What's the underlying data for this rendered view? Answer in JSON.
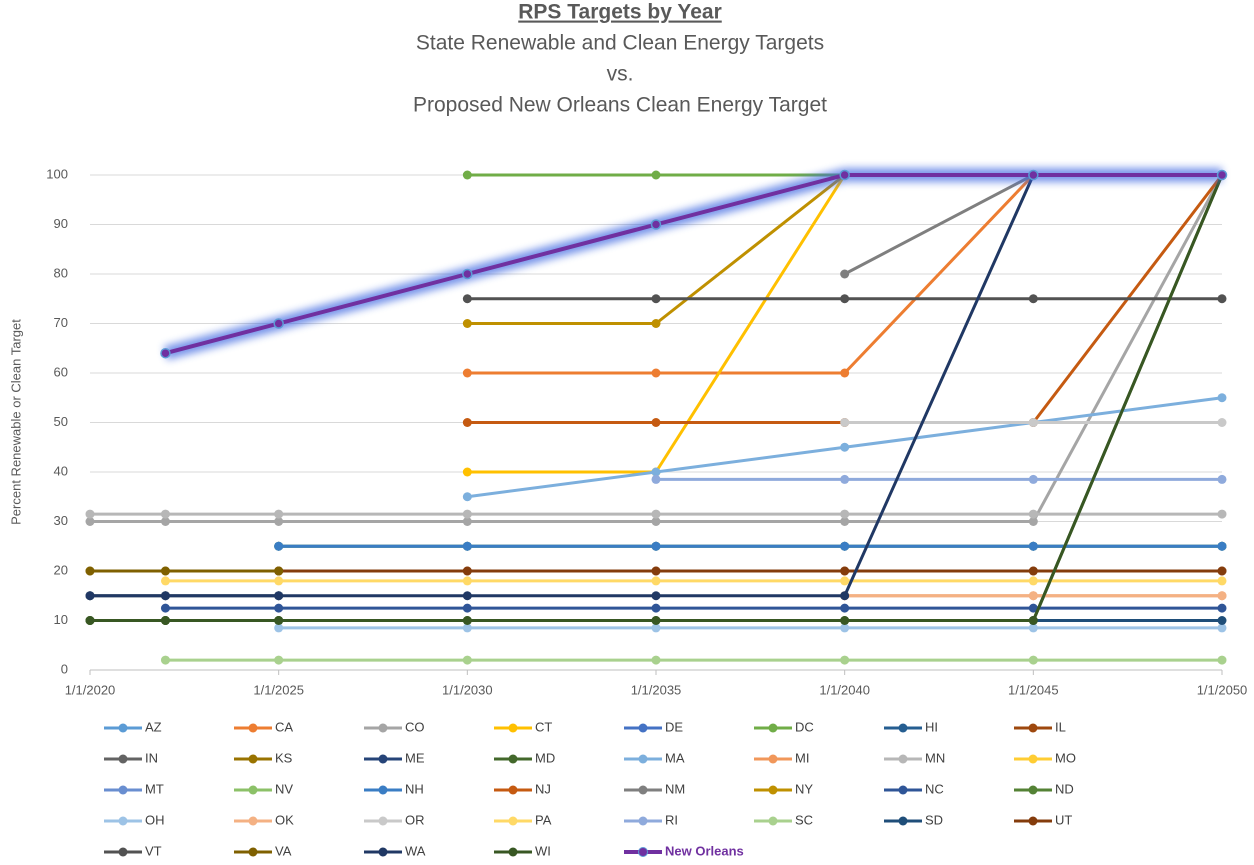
{
  "chart_data": {
    "type": "line",
    "title": "RPS Targets by Year",
    "subtitle": [
      "State Renewable and Clean Energy Targets",
      "vs.",
      "Proposed New Orleans Clean Energy Target"
    ],
    "y_label": "Percent Renewable or Clean  Target",
    "x": [
      2020,
      2022,
      2025,
      2030,
      2035,
      2040,
      2045,
      2050
    ],
    "xlim": [
      2020,
      2050
    ],
    "xticks": [
      {
        "value": 2020,
        "label": "1/1/2020"
      },
      {
        "value": 2025,
        "label": "1/1/2025"
      },
      {
        "value": 2030,
        "label": "1/1/2030"
      },
      {
        "value": 2035,
        "label": "1/1/2035"
      },
      {
        "value": 2040,
        "label": "1/1/2040"
      },
      {
        "value": 2045,
        "label": "1/1/2045"
      },
      {
        "value": 2050,
        "label": "1/1/2050"
      }
    ],
    "ylim": [
      0,
      100
    ],
    "yticks": [
      0,
      10,
      20,
      30,
      40,
      50,
      60,
      70,
      80,
      90,
      100
    ],
    "grid": true,
    "legend": "bottom",
    "series": [
      {
        "name": "AZ",
        "color": "#5b9bd5",
        "values": [
          15,
          15,
          15,
          null,
          null,
          null,
          null,
          null
        ]
      },
      {
        "name": "CA",
        "color": "#ed7d31",
        "values": [
          null,
          null,
          null,
          60,
          60,
          60,
          100,
          100
        ]
      },
      {
        "name": "CO",
        "color": "#a5a5a5",
        "values": [
          30,
          30,
          30,
          30,
          30,
          30,
          30,
          100
        ]
      },
      {
        "name": "CT",
        "color": "#ffc000",
        "values": [
          null,
          null,
          null,
          40,
          40,
          100,
          100,
          100
        ]
      },
      {
        "name": "DE",
        "color": "#4472c4",
        "values": [
          null,
          null,
          25,
          25,
          25,
          25,
          25,
          25
        ]
      },
      {
        "name": "DC",
        "color": "#70ad47",
        "values": [
          null,
          null,
          null,
          100,
          100,
          100,
          100,
          100
        ]
      },
      {
        "name": "HI",
        "color": "#255e91",
        "values": [
          null,
          null,
          25,
          25,
          25,
          25,
          25,
          25
        ]
      },
      {
        "name": "IL",
        "color": "#9e480e",
        "values": [
          null,
          null,
          20,
          20,
          20,
          20,
          20,
          20
        ]
      },
      {
        "name": "IN",
        "color": "#636363",
        "values": [
          10,
          10,
          10,
          null,
          null,
          null,
          null,
          null
        ]
      },
      {
        "name": "KS",
        "color": "#997300",
        "values": [
          20,
          20,
          20,
          null,
          null,
          null,
          null,
          null
        ]
      },
      {
        "name": "ME",
        "color": "#264478",
        "values": [
          15,
          15,
          15,
          null,
          null,
          null,
          null,
          null
        ]
      },
      {
        "name": "MD",
        "color": "#43682b",
        "values": [
          10,
          10,
          10,
          10,
          10,
          10,
          10,
          100
        ]
      },
      {
        "name": "MA",
        "color": "#7cafdd",
        "values": [
          null,
          null,
          null,
          35,
          40,
          45,
          50,
          55
        ]
      },
      {
        "name": "MI",
        "color": "#f1975a",
        "values": [
          null,
          null,
          null,
          null,
          null,
          15,
          15,
          15
        ]
      },
      {
        "name": "MN",
        "color": "#b7b7b7",
        "values": [
          31.5,
          31.5,
          31.5,
          31.5,
          31.5,
          31.5,
          31.5,
          31.5
        ]
      },
      {
        "name": "MO",
        "color": "#ffcd33",
        "values": [
          15,
          15,
          15,
          null,
          null,
          null,
          null,
          null
        ]
      },
      {
        "name": "MT",
        "color": "#698ed0",
        "values": [
          15,
          15,
          15,
          null,
          null,
          null,
          null,
          null
        ]
      },
      {
        "name": "NV",
        "color": "#8cc168",
        "values": [
          null,
          null,
          25,
          25,
          25,
          25,
          25,
          25
        ]
      },
      {
        "name": "NH",
        "color": "#3a7dc4",
        "values": [
          null,
          null,
          25,
          25,
          25,
          25,
          25,
          25
        ]
      },
      {
        "name": "NJ",
        "color": "#c55a11",
        "values": [
          null,
          null,
          null,
          50,
          50,
          50,
          50,
          100
        ]
      },
      {
        "name": "NM",
        "color": "#7f7f7f",
        "values": [
          null,
          null,
          null,
          null,
          null,
          80,
          100,
          100
        ]
      },
      {
        "name": "NY",
        "color": "#bf9000",
        "values": [
          null,
          null,
          null,
          70,
          70,
          100,
          100,
          100
        ]
      },
      {
        "name": "NC",
        "color": "#2f5597",
        "values": [
          null,
          12.5,
          12.5,
          12.5,
          12.5,
          12.5,
          12.5,
          12.5
        ]
      },
      {
        "name": "ND",
        "color": "#548235",
        "values": [
          10,
          10,
          10,
          null,
          null,
          null,
          null,
          null
        ]
      },
      {
        "name": "OH",
        "color": "#9dc3e6",
        "values": [
          null,
          null,
          8.5,
          8.5,
          8.5,
          8.5,
          8.5,
          8.5
        ]
      },
      {
        "name": "OK",
        "color": "#f4b183",
        "values": [
          null,
          null,
          null,
          null,
          null,
          15,
          15,
          15
        ]
      },
      {
        "name": "OR",
        "color": "#c9c9c9",
        "values": [
          null,
          null,
          null,
          null,
          null,
          50,
          50,
          50
        ]
      },
      {
        "name": "PA",
        "color": "#ffd966",
        "values": [
          null,
          18,
          18,
          18,
          18,
          18,
          18,
          18
        ]
      },
      {
        "name": "RI",
        "color": "#8faadc",
        "values": [
          null,
          null,
          null,
          null,
          38.5,
          38.5,
          38.5,
          38.5
        ]
      },
      {
        "name": "SC",
        "color": "#a9d18e",
        "values": [
          null,
          2,
          2,
          2,
          2,
          2,
          2,
          2
        ]
      },
      {
        "name": "SD",
        "color": "#1f4e79",
        "values": [
          null,
          null,
          null,
          null,
          null,
          null,
          10,
          10
        ]
      },
      {
        "name": "UT",
        "color": "#843c0c",
        "values": [
          null,
          null,
          20,
          20,
          20,
          20,
          20,
          20
        ]
      },
      {
        "name": "VT",
        "color": "#525252",
        "values": [
          null,
          null,
          null,
          75,
          75,
          75,
          75,
          75
        ]
      },
      {
        "name": "VA",
        "color": "#7f6000",
        "values": [
          20,
          20,
          20,
          null,
          null,
          null,
          null,
          null
        ]
      },
      {
        "name": "WA",
        "color": "#203864",
        "values": [
          15,
          15,
          15,
          15,
          15,
          15,
          100,
          100
        ]
      },
      {
        "name": "WI",
        "color": "#385723",
        "values": [
          10,
          10,
          10,
          10,
          10,
          10,
          10,
          100
        ]
      },
      {
        "name": "New Orleans",
        "color": "#7030a0",
        "glow": true,
        "values": [
          null,
          64,
          70,
          80,
          90,
          100,
          100,
          100
        ]
      }
    ]
  }
}
